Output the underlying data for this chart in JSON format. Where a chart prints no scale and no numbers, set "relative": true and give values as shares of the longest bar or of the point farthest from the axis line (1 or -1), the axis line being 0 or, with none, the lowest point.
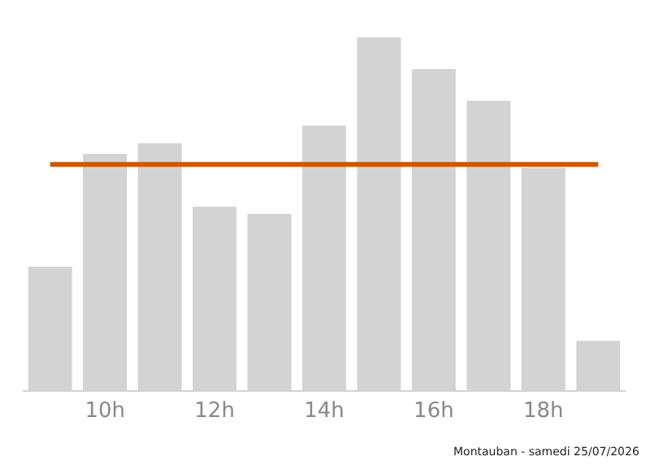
{
  "chart_data": {
    "type": "bar",
    "relative": true,
    "categories": [
      null,
      "10h",
      null,
      "12h",
      null,
      "14h",
      null,
      "16h",
      null,
      "18h",
      null
    ],
    "values": [
      0.35,
      0.67,
      0.7,
      0.52,
      0.5,
      0.75,
      1,
      0.91,
      0.82,
      0.63,
      0.14
    ],
    "color": "#d3d3d3",
    "ref_lines": [
      {
        "axis": "y",
        "value": 0.64,
        "color": "#d35400"
      }
    ],
    "annotations": [
      "Montauban - samedi 25/07/2026"
    ],
    "grid": false
  }
}
